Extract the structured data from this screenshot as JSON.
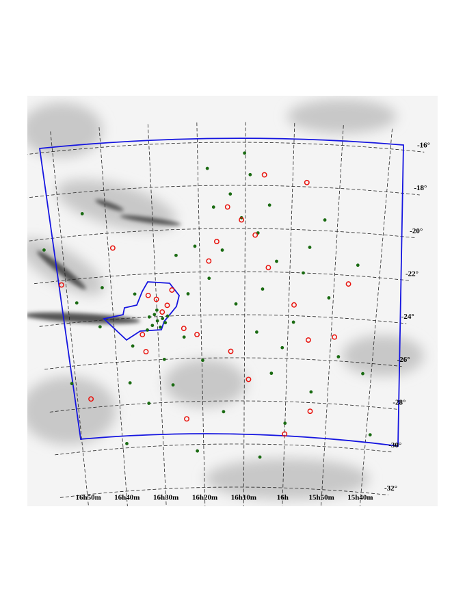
{
  "chart_data": {
    "type": "scatter",
    "xlim": [
      16.95,
      15.55
    ],
    "ylim": [
      -33,
      -15
    ],
    "xticks": [
      {
        "value": 16.8333,
        "label": "16h50m"
      },
      {
        "value": 16.6667,
        "label": "16h40m"
      },
      {
        "value": 16.5,
        "label": "16h30m"
      },
      {
        "value": 16.3333,
        "label": "16h20m"
      },
      {
        "value": 16.1667,
        "label": "16h10m"
      },
      {
        "value": 16,
        "label": "16h"
      },
      {
        "value": 15.8333,
        "label": "15h50m"
      },
      {
        "value": 15.6667,
        "label": "15h40m"
      }
    ],
    "yticks": [
      {
        "value": -16,
        "label": "-16°"
      },
      {
        "value": -18,
        "label": "-18°"
      },
      {
        "value": -20,
        "label": "-20°"
      },
      {
        "value": -22,
        "label": "-22°"
      },
      {
        "value": -24,
        "label": "-24°"
      },
      {
        "value": -26,
        "label": "-26°"
      },
      {
        "value": -28,
        "label": "-28°"
      },
      {
        "value": -30,
        "label": "-30°"
      },
      {
        "value": -32,
        "label": "-32°"
      }
    ],
    "grid": true,
    "series": [
      {
        "color": "#1a6b12",
        "marker": "filled",
        "x": [
          16.5,
          16.52,
          16.48,
          16.53,
          16.49,
          16.51,
          16.47,
          16.54,
          16.5,
          16.46,
          16.18,
          16.12,
          16.25,
          16.05,
          16.3,
          16.1,
          16.2,
          15.95,
          16.35,
          16.22,
          16.08,
          16.15,
          16.28,
          15.98,
          16.02,
          16.4,
          16.33,
          16.45,
          16.6,
          16.7,
          16.75,
          16.85,
          16.9,
          15.85,
          15.8,
          15.75,
          15.9,
          16.0,
          16.25,
          16.55,
          16.65,
          15.7,
          15.88,
          16.38,
          16.42,
          16.12,
          16.06,
          15.93,
          16.3,
          16.17,
          15.65,
          16.58,
          16.72,
          16.8,
          16.36,
          16.1,
          16.48,
          16.62
        ],
        "y": [
          -24.2,
          -24.4,
          -24.1,
          -24.0,
          -24.5,
          -23.9,
          -24.3,
          -24.6,
          -23.7,
          -24.0,
          -19.5,
          -20.2,
          -21.0,
          -21.5,
          -22.3,
          -22.8,
          -23.5,
          -22.0,
          -20.8,
          -18.4,
          -18.9,
          -17.5,
          -19.0,
          -24.3,
          -25.5,
          -25.0,
          -26.1,
          -27.2,
          -25.3,
          -22.5,
          -19.0,
          -26.8,
          -20.5,
          -23.1,
          -25.8,
          -21.5,
          -27.5,
          -29.0,
          -28.5,
          -28.0,
          -29.8,
          -26.5,
          -19.5,
          -23.0,
          -21.2,
          -24.8,
          -26.7,
          -20.8,
          -17.2,
          -16.5,
          -29.3,
          -22.9,
          -24.3,
          -23.1,
          -30.3,
          -30.6,
          -26.0,
          -27.0
        ]
      },
      {
        "color": "#e8120c",
        "marker": "open",
        "x": [
          16.5,
          16.46,
          16.53,
          16.44,
          16.48,
          16.56,
          16.4,
          16.13,
          16.18,
          16.23,
          16.27,
          16.08,
          16.3,
          15.98,
          15.92,
          15.82,
          15.78,
          16.35,
          16.55,
          16.85,
          16.78,
          16.65,
          16.4,
          16.15,
          16.0,
          15.9,
          16.22,
          15.95,
          16.1
        ],
        "y": [
          -23.2,
          -23.5,
          -23.0,
          -22.8,
          -23.8,
          -24.8,
          -24.6,
          -20.3,
          -19.6,
          -19.0,
          -20.6,
          -21.8,
          -21.5,
          -23.5,
          -25.1,
          -24.9,
          -22.4,
          -24.9,
          -25.6,
          -22.2,
          -27.6,
          -20.7,
          -28.8,
          -27.0,
          -29.5,
          -28.4,
          -25.7,
          -17.8,
          -17.5
        ]
      }
    ]
  }
}
